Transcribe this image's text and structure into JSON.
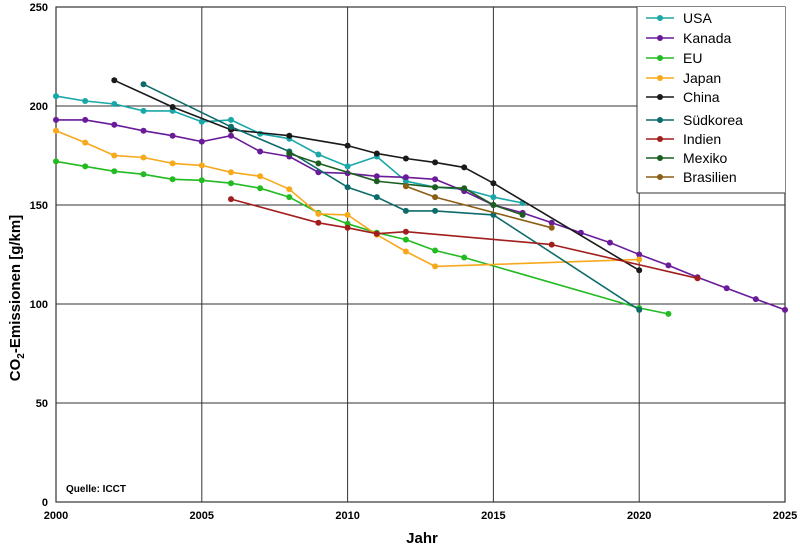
{
  "chart_data": {
    "type": "line",
    "xlabel": "Jahr",
    "ylabel_main": "CO",
    "ylabel_sub": "2",
    "ylabel_rest": "-Emissionen [g/km]",
    "source": "Quelle: ICCT",
    "xlim": [
      2000,
      2025
    ],
    "ylim": [
      0,
      250
    ],
    "x_ticks": [
      2000,
      2005,
      2010,
      2015,
      2020,
      2025
    ],
    "y_ticks": [
      0,
      50,
      100,
      150,
      200,
      250
    ],
    "grid": true,
    "legend_position": "top-right",
    "series": [
      {
        "name": "USA",
        "color": "#1aa7a7",
        "points": [
          [
            2000,
            205
          ],
          [
            2001,
            202.5
          ],
          [
            2002,
            201
          ],
          [
            2003,
            197.5
          ],
          [
            2004,
            197.5
          ],
          [
            2005,
            192
          ],
          [
            2006,
            193
          ],
          [
            2007,
            186
          ],
          [
            2008,
            183.5
          ],
          [
            2009,
            175.5
          ],
          [
            2010,
            169.5
          ],
          [
            2011,
            174.5
          ],
          [
            2012,
            162
          ],
          [
            2013,
            159
          ],
          [
            2014,
            158
          ],
          [
            2015,
            154
          ],
          [
            2016,
            151
          ]
        ]
      },
      {
        "name": "Kanada",
        "color": "#6a1b9a",
        "points": [
          [
            2000,
            193
          ],
          [
            2001,
            193
          ],
          [
            2002,
            190.5
          ],
          [
            2003,
            187.5
          ],
          [
            2004,
            185
          ],
          [
            2005,
            182
          ],
          [
            2006,
            185
          ],
          [
            2007,
            177
          ],
          [
            2008,
            174.5
          ],
          [
            2009,
            166.5
          ],
          [
            2010,
            166
          ],
          [
            2011,
            164.5
          ],
          [
            2012,
            164
          ],
          [
            2013,
            163
          ],
          [
            2014,
            157
          ],
          [
            2015,
            150
          ],
          [
            2016,
            146
          ],
          [
            2017,
            141
          ],
          [
            2018,
            136
          ],
          [
            2019,
            131
          ],
          [
            2020,
            125
          ],
          [
            2021,
            119.5
          ],
          [
            2022,
            113.5
          ],
          [
            2023,
            108
          ],
          [
            2024,
            102.5
          ],
          [
            2025,
            97
          ]
        ]
      },
      {
        "name": "EU",
        "color": "#22bb22",
        "points": [
          [
            2000,
            172
          ],
          [
            2001,
            169.5
          ],
          [
            2002,
            167
          ],
          [
            2003,
            165.5
          ],
          [
            2004,
            163
          ],
          [
            2005,
            162.5
          ],
          [
            2006,
            161
          ],
          [
            2007,
            158.5
          ],
          [
            2008,
            154
          ],
          [
            2009,
            146
          ],
          [
            2010,
            140.5
          ],
          [
            2011,
            136
          ],
          [
            2012,
            132.5
          ],
          [
            2013,
            127
          ],
          [
            2014,
            123.5
          ],
          [
            2020,
            98
          ],
          [
            2021,
            95
          ]
        ]
      },
      {
        "name": "Japan",
        "color": "#f7a81b",
        "points": [
          [
            2000,
            187.5
          ],
          [
            2001,
            181.5
          ],
          [
            2002,
            175
          ],
          [
            2003,
            174
          ],
          [
            2004,
            171
          ],
          [
            2005,
            170
          ],
          [
            2006,
            166.5
          ],
          [
            2007,
            164.5
          ],
          [
            2008,
            158
          ],
          [
            2009,
            145.5
          ],
          [
            2010,
            145
          ],
          [
            2011,
            135
          ],
          [
            2012,
            126.5
          ],
          [
            2013,
            119
          ],
          [
            2020,
            122.5
          ]
        ]
      },
      {
        "name": "China",
        "color": "#1a1a1a",
        "points": [
          [
            2002,
            213
          ],
          [
            2004,
            199.5
          ],
          [
            2006,
            188
          ],
          [
            2008,
            185
          ],
          [
            2010,
            180
          ],
          [
            2011,
            176
          ],
          [
            2012,
            173.5
          ],
          [
            2013,
            171.5
          ],
          [
            2014,
            169
          ],
          [
            2015,
            161
          ],
          [
            2020,
            117
          ]
        ]
      },
      {
        "name": "Südkorea",
        "color": "#0e6b6b",
        "points": [
          [
            2003,
            211
          ],
          [
            2006,
            189.5
          ],
          [
            2008,
            177
          ],
          [
            2010,
            159
          ],
          [
            2011,
            154
          ],
          [
            2012,
            147
          ],
          [
            2013,
            147
          ],
          [
            2015,
            145
          ],
          [
            2020,
            97
          ]
        ]
      },
      {
        "name": "Indien",
        "color": "#a21d1d",
        "points": [
          [
            2006,
            153
          ],
          [
            2009,
            141
          ],
          [
            2010,
            138.5
          ],
          [
            2011,
            135.5
          ],
          [
            2012,
            136.5
          ],
          [
            2017,
            130
          ],
          [
            2022,
            113
          ]
        ]
      },
      {
        "name": "Mexiko",
        "color": "#1b5e20",
        "points": [
          [
            2008,
            176
          ],
          [
            2009,
            171
          ],
          [
            2011,
            162
          ],
          [
            2013,
            159
          ],
          [
            2014,
            158.5
          ],
          [
            2015,
            150
          ],
          [
            2016,
            145
          ]
        ]
      },
      {
        "name": "Brasilien",
        "color": "#8b5e14",
        "points": [
          [
            2012,
            159.5
          ],
          [
            2013,
            154
          ],
          [
            2017,
            138.5
          ]
        ]
      }
    ]
  }
}
